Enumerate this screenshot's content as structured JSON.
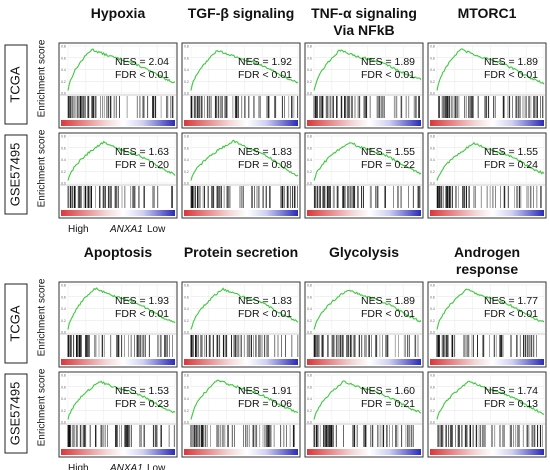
{
  "y_axis_label": "Enrichment score",
  "ranking_axis": {
    "high": "High",
    "gene": "ANXA1",
    "low": "Low"
  },
  "row_labels": [
    "TCGA",
    "GSE57495",
    "TCGA",
    "GSE57495"
  ],
  "col_titles": [
    [
      "Hypoxia",
      "TGF-β signaling",
      "TNF-α signaling Via NFkB",
      "MTORC1"
    ],
    [
      "Apoptosis",
      "Protein secretion",
      "Glycolysis",
      "Androgen response"
    ]
  ],
  "col_title_lines": [
    [
      [
        "Hypoxia"
      ],
      [
        "TGF-β signaling"
      ],
      [
        "TNF-α signaling",
        "Via NFkB"
      ],
      [
        "MTORC1"
      ]
    ],
    [
      [
        "Apoptosis"
      ],
      [
        "Protein secretion"
      ],
      [
        "Glycolysis"
      ],
      [
        "Androgen",
        "response"
      ]
    ]
  ],
  "colors": {
    "curve": "#3ec93e",
    "heat_high": "#d9383a",
    "heat_mid": "#f4d7d7",
    "heat_low": "#2a2ab8",
    "hit": "#111111"
  },
  "chart_data": [
    {
      "type": "line",
      "title": "Hypoxia",
      "dataset": "TCGA",
      "nes": "NES = 2.04",
      "fdr": "FDR < 0.01",
      "peak": 0.22,
      "peak_value": 0.88,
      "end_value": 0.22
    },
    {
      "type": "line",
      "title": "TGF-β signaling",
      "dataset": "TCGA",
      "nes": "NES = 1.92",
      "fdr": "FDR < 0.01",
      "peak": 0.25,
      "peak_value": 0.86,
      "end_value": 0.22
    },
    {
      "type": "line",
      "title": "TNF-α signaling Via NFkB",
      "dataset": "TCGA",
      "nes": "NES = 1.89",
      "fdr": "FDR < 0.01",
      "peak": 0.24,
      "peak_value": 0.86,
      "end_value": 0.28
    },
    {
      "type": "line",
      "title": "MTORC1",
      "dataset": "TCGA",
      "nes": "NES = 1.89",
      "fdr": "FDR < 0.01",
      "peak": 0.22,
      "peak_value": 0.88,
      "end_value": 0.2
    },
    {
      "type": "line",
      "title": "Hypoxia",
      "dataset": "GSE57495",
      "nes": "NES = 1.63",
      "fdr": "FDR = 0.20",
      "peak": 0.33,
      "peak_value": 0.82,
      "end_value": 0.18
    },
    {
      "type": "line",
      "title": "TGF-β signaling",
      "dataset": "GSE57495",
      "nes": "NES = 1.83",
      "fdr": "FDR = 0.08",
      "peak": 0.4,
      "peak_value": 0.85,
      "end_value": 0.15
    },
    {
      "type": "line",
      "title": "TNF-α signaling Via NFkB",
      "dataset": "GSE57495",
      "nes": "NES = 1.55",
      "fdr": "FDR = 0.22",
      "peak": 0.33,
      "peak_value": 0.82,
      "end_value": 0.2
    },
    {
      "type": "line",
      "title": "MTORC1",
      "dataset": "GSE57495",
      "nes": "NES = 1.55",
      "fdr": "FDR = 0.24",
      "peak": 0.35,
      "peak_value": 0.8,
      "end_value": 0.2
    },
    {
      "type": "line",
      "title": "Apoptosis",
      "dataset": "TCGA",
      "nes": "NES = 1.93",
      "fdr": "FDR < 0.01",
      "peak": 0.25,
      "peak_value": 0.88,
      "end_value": 0.2
    },
    {
      "type": "line",
      "title": "Protein secretion",
      "dataset": "TCGA",
      "nes": "NES = 1.83",
      "fdr": "FDR < 0.01",
      "peak": 0.3,
      "peak_value": 0.87,
      "end_value": 0.22
    },
    {
      "type": "line",
      "title": "Glycolysis",
      "dataset": "TCGA",
      "nes": "NES = 1.89",
      "fdr": "FDR < 0.01",
      "peak": 0.32,
      "peak_value": 0.86,
      "end_value": 0.22
    },
    {
      "type": "line",
      "title": "Androgen response",
      "dataset": "TCGA",
      "nes": "NES = 1.77",
      "fdr": "FDR < 0.01",
      "peak": 0.28,
      "peak_value": 0.86,
      "end_value": 0.2
    },
    {
      "type": "line",
      "title": "Apoptosis",
      "dataset": "GSE57495",
      "nes": "NES = 1.53",
      "fdr": "FDR = 0.23",
      "peak": 0.3,
      "peak_value": 0.82,
      "end_value": 0.2
    },
    {
      "type": "line",
      "title": "Protein secretion",
      "dataset": "GSE57495",
      "nes": "NES = 1.91",
      "fdr": "FDR = 0.06",
      "peak": 0.25,
      "peak_value": 0.85,
      "end_value": 0.2
    },
    {
      "type": "line",
      "title": "Glycolysis",
      "dataset": "GSE57495",
      "nes": "NES = 1.60",
      "fdr": "FDR = 0.21",
      "peak": 0.28,
      "peak_value": 0.82,
      "end_value": 0.2
    },
    {
      "type": "line",
      "title": "Androgen response",
      "dataset": "GSE57495",
      "nes": "NES = 1.74",
      "fdr": "FDR = 0.13",
      "peak": 0.3,
      "peak_value": 0.82,
      "end_value": 0.18
    }
  ]
}
